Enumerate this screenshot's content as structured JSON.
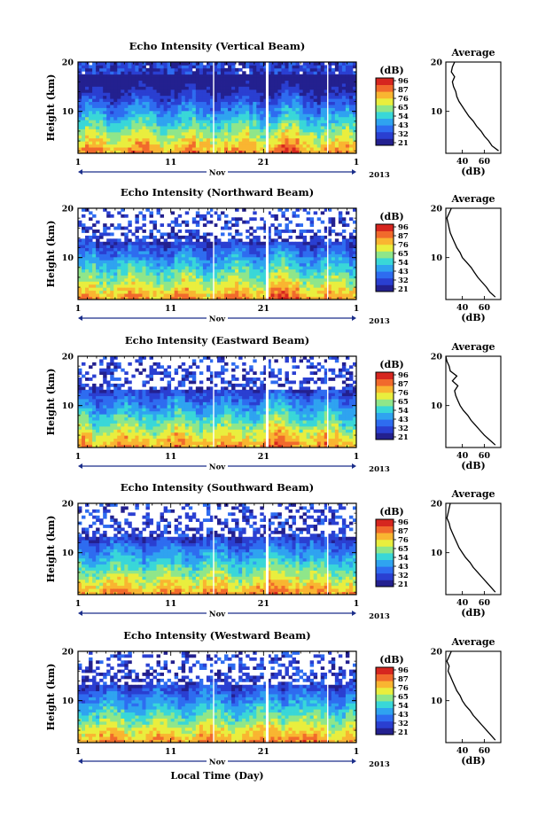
{
  "figure": {
    "xlabel_bottom": "Local Time (Day)",
    "month_label": "Nov",
    "year_label": "2013",
    "colorbar_unit": "(dB)",
    "colorbar_ticks": [
      "96",
      "87",
      "76",
      "65",
      "54",
      "43",
      "32",
      "21"
    ],
    "profile_title": "Average",
    "profile_xlabel": "(dB)"
  },
  "colors": {
    "colormap": [
      "#23208f",
      "#2a3fd1",
      "#2e6cf0",
      "#2fa3f0",
      "#39d7d8",
      "#8fe68a",
      "#e9ee3e",
      "#f9b531",
      "#f16a2c",
      "#d6261f"
    ],
    "line": "#000000"
  },
  "chart_data": [
    {
      "type": "heatmap",
      "title": "Echo Intensity (Vertical Beam)",
      "xlabel": "Nov",
      "ylabel": "Height (km)",
      "x_ticks": [
        "1",
        "11",
        "21",
        "1"
      ],
      "y_ticks": [
        "20",
        "10"
      ],
      "ylim": [
        1.5,
        20
      ],
      "colorbar": {
        "label": "(dB)",
        "range": [
          21,
          96
        ]
      },
      "profile": {
        "title": "Average",
        "xlabel": "(dB)",
        "x_ticks": [
          "40",
          "60"
        ],
        "heights": [
          2,
          3,
          4,
          5,
          6,
          7,
          8,
          9,
          10,
          11,
          12,
          13,
          14,
          15,
          16,
          17,
          18,
          19,
          20
        ],
        "values": [
          73,
          67,
          64,
          60,
          57,
          53,
          50,
          46,
          43,
          40,
          37,
          35,
          34,
          32,
          31,
          33,
          30,
          31,
          33
        ]
      }
    },
    {
      "type": "heatmap",
      "title": "Echo Intensity (Northward Beam)",
      "xlabel": "Nov",
      "ylabel": "Height (km)",
      "x_ticks": [
        "1",
        "11",
        "21",
        "1"
      ],
      "y_ticks": [
        "20",
        "10"
      ],
      "ylim": [
        1.5,
        20
      ],
      "colorbar": {
        "label": "(dB)",
        "range": [
          21,
          96
        ]
      },
      "profile": {
        "title": "Average",
        "xlabel": "(dB)",
        "x_ticks": [
          "40",
          "60"
        ],
        "heights": [
          2,
          3,
          4,
          5,
          6,
          7,
          8,
          9,
          10,
          11,
          12,
          13,
          14,
          15,
          16,
          17,
          18,
          19,
          20
        ],
        "values": [
          70,
          65,
          62,
          58,
          54,
          51,
          48,
          44,
          40,
          38,
          35,
          33,
          31,
          29,
          28,
          27,
          26,
          28,
          30
        ]
      }
    },
    {
      "type": "heatmap",
      "title": "Echo Intensity (Eastward Beam)",
      "xlabel": "Nov",
      "ylabel": "Height (km)",
      "x_ticks": [
        "1",
        "11",
        "21",
        "1"
      ],
      "y_ticks": [
        "20",
        "10"
      ],
      "ylim": [
        1.5,
        20
      ],
      "colorbar": {
        "label": "(dB)",
        "range": [
          21,
          96
        ]
      },
      "profile": {
        "title": "Average",
        "xlabel": "(dB)",
        "x_ticks": [
          "40",
          "60"
        ],
        "heights": [
          2,
          3,
          4,
          5,
          6,
          7,
          8,
          9,
          10,
          11,
          12,
          13,
          14,
          15,
          16,
          17,
          18,
          19,
          20
        ],
        "values": [
          70,
          65,
          60,
          56,
          52,
          48,
          45,
          41,
          38,
          36,
          34,
          33,
          36,
          31,
          35,
          29,
          28,
          26,
          25
        ]
      }
    },
    {
      "type": "heatmap",
      "title": "Echo Intensity (Southward Beam)",
      "xlabel": "Nov",
      "ylabel": "Height (km)",
      "x_ticks": [
        "1",
        "11",
        "21",
        "1"
      ],
      "y_ticks": [
        "20",
        "10"
      ],
      "ylim": [
        1.5,
        20
      ],
      "colorbar": {
        "label": "(dB)",
        "range": [
          21,
          96
        ]
      },
      "profile": {
        "title": "Average",
        "xlabel": "(dB)",
        "x_ticks": [
          "40",
          "60"
        ],
        "heights": [
          2,
          3,
          4,
          5,
          6,
          7,
          8,
          9,
          10,
          11,
          12,
          13,
          14,
          15,
          16,
          17,
          18,
          19,
          20
        ],
        "values": [
          70,
          66,
          62,
          58,
          54,
          50,
          47,
          43,
          40,
          37,
          35,
          33,
          31,
          29,
          28,
          26,
          27,
          28,
          29
        ]
      }
    },
    {
      "type": "heatmap",
      "title": "Echo Intensity (Westward Beam)",
      "xlabel": "Nov",
      "ylabel": "Height (km)",
      "x_ticks": [
        "1",
        "11",
        "21",
        "1"
      ],
      "y_ticks": [
        "20",
        "10"
      ],
      "ylim": [
        1.5,
        20
      ],
      "colorbar": {
        "label": "(dB)",
        "range": [
          21,
          96
        ]
      },
      "profile": {
        "title": "Average",
        "xlabel": "(dB)",
        "x_ticks": [
          "40",
          "60"
        ],
        "heights": [
          2,
          3,
          4,
          5,
          6,
          7,
          8,
          9,
          10,
          11,
          12,
          13,
          14,
          15,
          16,
          17,
          18,
          19,
          20
        ],
        "values": [
          70,
          66,
          62,
          58,
          54,
          50,
          47,
          43,
          40,
          38,
          35,
          33,
          31,
          29,
          27,
          28,
          26,
          28,
          30
        ]
      }
    }
  ]
}
